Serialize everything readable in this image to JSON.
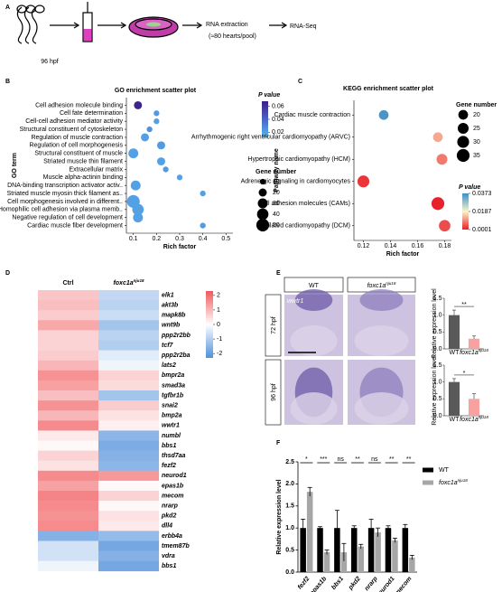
{
  "panel_labels": [
    "A",
    "B",
    "C",
    "D",
    "E",
    "F"
  ],
  "workflow": {
    "stage": "96 hpf",
    "step1": "RNA extraction",
    "step1_note": "(≈80 hearts/pool)",
    "step2": "RNA-Seq"
  },
  "in_situ": {
    "columns": [
      {
        "label": "WT"
      },
      {
        "label": "foxc1a",
        "superscript": "nju18"
      }
    ],
    "rows": [
      "72 hpf",
      "96 hpf"
    ],
    "probe": "wwtr1"
  },
  "chart_data": [
    {
      "type": "enrichment-scatter",
      "title": "GO enrichment scatter plot",
      "x_label": "Rich factor",
      "y_label": "GO term",
      "categories": [
        "Cell adhesion molecule binding",
        "Cell fate determination",
        "Cell-cell adhesion mediator activity",
        "Structural constituent of cytoskeleton",
        "Regulation of muscle contraction",
        "Regulation of cell morphogenesis",
        "Structural constituent of muscle",
        "Striated muscle thin filament",
        "Extracellular matrix",
        "Muscle alpha-actinin binding",
        "DNA-binding transcription activator activ..",
        "Striated muscle myosin thick filament as..",
        "Cell morphogenesis involved in different..",
        "Homophilic cell adhesion via plasma memb..",
        "Negative regulation of cell development",
        "Cardiac muscle fiber development"
      ],
      "values": [
        0.12,
        0.2,
        0.2,
        0.17,
        0.15,
        0.22,
        0.1,
        0.22,
        0.24,
        0.3,
        0.11,
        0.4,
        0.1,
        0.12,
        0.12,
        0.4
      ],
      "sizes": [
        20,
        10,
        10,
        10,
        20,
        20,
        30,
        20,
        10,
        10,
        30,
        10,
        50,
        40,
        30,
        10
      ],
      "pvalues": [
        0.065,
        0.022,
        0.02,
        0.025,
        0.02,
        0.022,
        0.02,
        0.02,
        0.022,
        0.02,
        0.02,
        0.02,
        0.02,
        0.02,
        0.02,
        0.022
      ],
      "xlim": [
        0.07,
        0.53
      ],
      "xticks": [
        0.1,
        0.2,
        0.3,
        0.4,
        0.5
      ],
      "color_legend": {
        "title": "P value",
        "ticks": [
          0.06,
          0.04,
          0.02
        ],
        "clim": [
          0.012,
          0.068
        ],
        "colors": [
          "#56b8f0",
          "#4a63c9",
          "#3b1e86"
        ]
      },
      "size_legend": {
        "title": "Gene number",
        "values": [
          10,
          20,
          30,
          40,
          50
        ]
      }
    },
    {
      "type": "enrichment-scatter",
      "title": "KEGG enrichment scatter plot",
      "x_label": "Rich factor",
      "y_label": "Pathway name",
      "categories": [
        "Cardiac muscle contraction",
        "Arrhythmogenic right ventricular cardiomyopathy (ARVC)",
        "Hypertrophic cardiomyopathy (HCM)",
        "Adrenergic signaling in cardiomyocytes",
        "Cell adhesion molecules (CAMs)",
        "Dilated cardiomyopathy (DCM)"
      ],
      "values": [
        0.135,
        0.175,
        0.178,
        0.12,
        0.175,
        0.18
      ],
      "sizes": [
        20,
        20,
        25,
        30,
        35,
        28
      ],
      "pvalues": [
        0.036,
        0.012,
        0.008,
        0.002,
        0.0003,
        0.004
      ],
      "xlim": [
        0.113,
        0.185
      ],
      "xticks": [
        0.12,
        0.14,
        0.16,
        0.18
      ],
      "color_legend": {
        "title": "P value",
        "ticks": [
          0.0373,
          0.0187,
          0.0001
        ],
        "clim": [
          0.0001,
          0.0373
        ],
        "colors": [
          "#e8202a",
          "#fbf3cb",
          "#3e8ec4"
        ]
      },
      "size_legend": {
        "title": "Gene number",
        "values": [
          20,
          25,
          30,
          35
        ]
      }
    },
    {
      "type": "heatmap",
      "columns": [
        {
          "label": "Ctrl"
        },
        {
          "label": "foxc1a",
          "superscript": "nju18"
        }
      ],
      "rows": [
        "elk1",
        "akt3b",
        "mapk8b",
        "wnt9b",
        "ppp2r2bb",
        "tcf7",
        "ppp2r2ba",
        "lats2",
        "bmpr2a",
        "smad3a",
        "tgfbr1b",
        "snai2",
        "bmp2a",
        "wwtr1",
        "numbl",
        "bbs1",
        "thsd7aa",
        "fezf2",
        "neurod1",
        "epas1b",
        "mecom",
        "nrarp",
        "pkd2",
        "dll4",
        "erbb4a",
        "tmem87b",
        "vdra",
        "bbs1"
      ],
      "values": [
        [
          0.8,
          -0.8
        ],
        [
          0.9,
          -0.9
        ],
        [
          0.7,
          -0.7
        ],
        [
          1.2,
          -1.2
        ],
        [
          0.6,
          -0.9
        ],
        [
          0.6,
          -1.0
        ],
        [
          0.7,
          -0.4
        ],
        [
          1.0,
          -0.2
        ],
        [
          1.5,
          0.6
        ],
        [
          1.3,
          0.5
        ],
        [
          0.9,
          -1.2
        ],
        [
          1.5,
          0.7
        ],
        [
          1.0,
          0.4
        ],
        [
          1.6,
          0.2
        ],
        [
          0.3,
          -1.5
        ],
        [
          0.1,
          -1.7
        ],
        [
          0.6,
          -1.6
        ],
        [
          0.4,
          -1.5
        ],
        [
          1.6,
          1.4
        ],
        [
          1.3,
          0.1
        ],
        [
          1.7,
          0.6
        ],
        [
          1.6,
          0.1
        ],
        [
          1.5,
          0.4
        ],
        [
          1.6,
          0.3
        ],
        [
          -1.6,
          -1.4
        ],
        [
          -0.6,
          -1.8
        ],
        [
          -0.6,
          -1.6
        ],
        [
          -0.2,
          -1.8
        ]
      ],
      "clim": [
        -2.3,
        2.3
      ],
      "cticks": [
        2,
        1,
        0,
        -1,
        -2
      ],
      "colors": [
        "#4f8fdb",
        "#ffffff",
        "#f0585b"
      ]
    },
    {
      "type": "bar",
      "y_label": "Relative expression level",
      "categories": [
        {
          "label": "WT"
        },
        {
          "label": "foxc1a",
          "superscript": "nju18"
        }
      ],
      "values": [
        1.0,
        0.3
      ],
      "errors": [
        0.15,
        0.08
      ],
      "colors": [
        "#595959",
        "#f7a1a1"
      ],
      "significance": "**",
      "ylim": [
        0,
        1.5
      ],
      "yticks": [
        {
          "value": 0,
          "label": "0.0"
        },
        0.5,
        {
          "value": 1,
          "label": "1.0"
        },
        1.5
      ]
    },
    {
      "type": "bar",
      "y_label": "Relative expression level",
      "categories": [
        {
          "label": "WT"
        },
        {
          "label": "foxc1a",
          "superscript": "nju18"
        }
      ],
      "values": [
        1.0,
        0.5
      ],
      "errors": [
        0.1,
        0.15
      ],
      "colors": [
        "#595959",
        "#f7a1a1"
      ],
      "significance": "*",
      "ylim": [
        0,
        1.5
      ],
      "yticks": [
        {
          "value": 0,
          "label": "0.0"
        },
        0.5,
        {
          "value": 1,
          "label": "1.0"
        },
        1.5
      ]
    },
    {
      "type": "grouped-bar",
      "y_label": "Relative expression level",
      "categories": [
        "fezf2",
        "epas1b",
        "bbs1",
        "pkd2",
        "nrarp",
        "neurod1",
        "mecom"
      ],
      "series": [
        {
          "name": "WT",
          "color": "#000000",
          "values": [
            1.0,
            1.0,
            1.0,
            1.0,
            1.0,
            1.0,
            1.0
          ],
          "errors": [
            0.2,
            0.03,
            0.4,
            0.05,
            0.2,
            0.05,
            0.08
          ]
        },
        {
          "name": "foxc1a",
          "superscript": "nju18",
          "color": "#a6a6a6",
          "values": [
            1.82,
            0.45,
            0.45,
            0.58,
            0.9,
            0.72,
            0.33
          ],
          "errors": [
            0.1,
            0.05,
            0.2,
            0.05,
            0.1,
            0.05,
            0.05
          ]
        }
      ],
      "significance": [
        "*",
        "***",
        "ns",
        "**",
        "ns",
        "**",
        "**"
      ],
      "ylim": [
        0,
        2.5
      ],
      "yticks": [
        {
          "value": 0,
          "label": "0.0"
        },
        0.5,
        {
          "value": 1,
          "label": "1.0"
        },
        1.5,
        {
          "value": 2,
          "label": "2.0"
        },
        2.5
      ]
    }
  ]
}
